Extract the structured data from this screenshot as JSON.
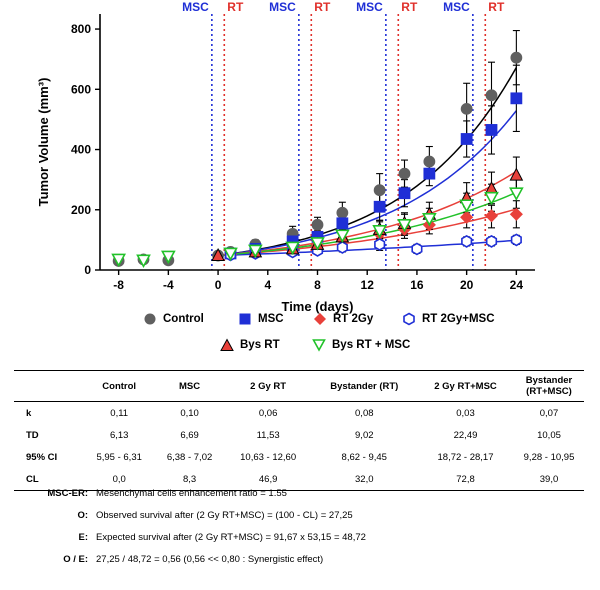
{
  "chart_data": {
    "type": "line",
    "xlabel": "Time (days)",
    "ylabel": "Tumor Volume (mm³)",
    "xlim": [
      -9.5,
      25.5
    ],
    "ylim": [
      0,
      850
    ],
    "xticks": [
      -8,
      -4,
      0,
      4,
      8,
      12,
      16,
      20,
      24
    ],
    "yticks": [
      0,
      200,
      400,
      600,
      800
    ],
    "grid": false,
    "treatment_lines": [
      {
        "label": "MSC",
        "day": -0.5,
        "color": "#1f2fd6"
      },
      {
        "label": "RT",
        "day": 0.5,
        "color": "#e0302b"
      },
      {
        "label": "MSC",
        "day": 6.5,
        "color": "#1f2fd6"
      },
      {
        "label": "RT",
        "day": 7.5,
        "color": "#e0302b"
      },
      {
        "label": "MSC",
        "day": 13.5,
        "color": "#1f2fd6"
      },
      {
        "label": "RT",
        "day": 14.5,
        "color": "#e0302b"
      },
      {
        "label": "MSC",
        "day": 20.5,
        "color": "#1f2fd6"
      },
      {
        "label": "RT",
        "day": 21.5,
        "color": "#e0302b"
      }
    ],
    "series": [
      {
        "name": "Control",
        "color": "#606060",
        "marker": "circle",
        "fill": true,
        "x": [
          -8,
          -6,
          -4,
          0,
          1,
          3,
          6,
          8,
          10,
          13,
          15,
          17,
          20,
          22,
          24
        ],
        "y": [
          30,
          35,
          32,
          48,
          60,
          85,
          120,
          150,
          190,
          265,
          320,
          360,
          535,
          580,
          705
        ],
        "err": [
          10,
          10,
          10,
          8,
          12,
          15,
          25,
          25,
          35,
          55,
          45,
          50,
          85,
          110,
          90
        ],
        "fit_k": 0.11
      },
      {
        "name": "MSC",
        "color": "#1f2fd6",
        "marker": "square",
        "fill": true,
        "x": [
          1,
          3,
          6,
          8,
          10,
          13,
          15,
          17,
          20,
          22,
          24
        ],
        "y": [
          55,
          70,
          95,
          110,
          155,
          210,
          255,
          320,
          435,
          465,
          570
        ],
        "err": [
          10,
          12,
          18,
          20,
          25,
          45,
          45,
          40,
          60,
          80,
          110
        ],
        "fit_k": 0.1
      },
      {
        "name": "RT 2Gy",
        "color": "#e8403a",
        "marker": "diamond",
        "fill": true,
        "x": [
          1,
          3,
          6,
          8,
          10,
          13,
          15,
          17,
          20,
          22,
          24
        ],
        "y": [
          52,
          60,
          65,
          80,
          100,
          120,
          135,
          150,
          175,
          180,
          185
        ],
        "err": [
          8,
          10,
          12,
          15,
          20,
          25,
          30,
          30,
          35,
          40,
          45
        ],
        "fit_k": 0.06
      },
      {
        "name": "RT 2Gy+MSC",
        "color": "#1f2fd6",
        "marker": "hexagon",
        "fill": false,
        "x": [
          1,
          3,
          6,
          8,
          10,
          13,
          16,
          20,
          22,
          24
        ],
        "y": [
          50,
          55,
          60,
          65,
          75,
          85,
          70,
          95,
          95,
          100
        ],
        "err": [
          6,
          8,
          10,
          12,
          15,
          20,
          15,
          15,
          15,
          15
        ],
        "fit_k": 0.03
      },
      {
        "name": "Bys RT",
        "color": "#e8403a",
        "marker": "triangle-up",
        "fill": true,
        "x": [
          0,
          3,
          6,
          8,
          10,
          13,
          15,
          17,
          20,
          22,
          24
        ],
        "y": [
          48,
          60,
          70,
          85,
          110,
          135,
          155,
          185,
          240,
          270,
          315
        ],
        "err": [
          8,
          12,
          15,
          18,
          25,
          30,
          35,
          40,
          50,
          55,
          60
        ],
        "fit_k": 0.08
      },
      {
        "name": "Bys RT + MSC",
        "color": "#22c22a",
        "marker": "triangle-down",
        "fill": false,
        "x": [
          -8,
          -6,
          -4,
          1,
          3,
          6,
          8,
          10,
          13,
          15,
          17,
          20,
          22,
          24
        ],
        "y": [
          35,
          32,
          45,
          55,
          65,
          75,
          90,
          115,
          130,
          150,
          170,
          215,
          240,
          255
        ],
        "err": [
          10,
          10,
          12,
          10,
          12,
          15,
          20,
          25,
          30,
          35,
          35,
          40,
          45,
          50
        ],
        "fit_k": 0.07
      }
    ]
  },
  "legend": [
    {
      "label": "Control"
    },
    {
      "label": "MSC"
    },
    {
      "label": "RT 2Gy"
    },
    {
      "label": "RT 2Gy+MSC"
    },
    {
      "label": "Bys RT"
    },
    {
      "label": "Bys RT + MSC"
    }
  ],
  "table": {
    "headers": [
      "",
      "Control",
      "MSC",
      "2 Gy RT",
      "Bystander (RT)",
      "2 Gy RT+MSC",
      "Bystander (RT+MSC)"
    ],
    "rows": [
      {
        "label": "k",
        "cells": [
          "0,11",
          "0,10",
          "0,06",
          "0,08",
          "0,03",
          "0,07"
        ]
      },
      {
        "label": "TD",
        "cells": [
          "6,13",
          "6,69",
          "11,53",
          "9,02",
          "22,49",
          "10,05"
        ]
      },
      {
        "label": "95% CI",
        "cells": [
          "5,95 - 6,31",
          "6,38 - 7,02",
          "10,63 - 12,60",
          "8,62 - 9,45",
          "18,72 - 28,17",
          "9,28 - 10,95"
        ]
      },
      {
        "label": "CL",
        "cells": [
          "0,0",
          "8,3",
          "46,9",
          "32,0",
          "72,8",
          "39,0"
        ]
      }
    ]
  },
  "notes": [
    {
      "key": "MSC-ER:",
      "text": "Mesenchymal cells enhancement ratio =  1.55"
    },
    {
      "key": "O:",
      "text": "Observed survival after (2 Gy RT+MSC) = (100 - CL) = 27,25"
    },
    {
      "key": "E:",
      "text": "Expected survival after (2 Gy RT+MSC) = 91,67 x 53,15 = 48,72"
    },
    {
      "key": "O / E:",
      "text": "27,25 / 48,72 = 0,56   (0,56 << 0,80 : Synergistic effect)"
    }
  ]
}
